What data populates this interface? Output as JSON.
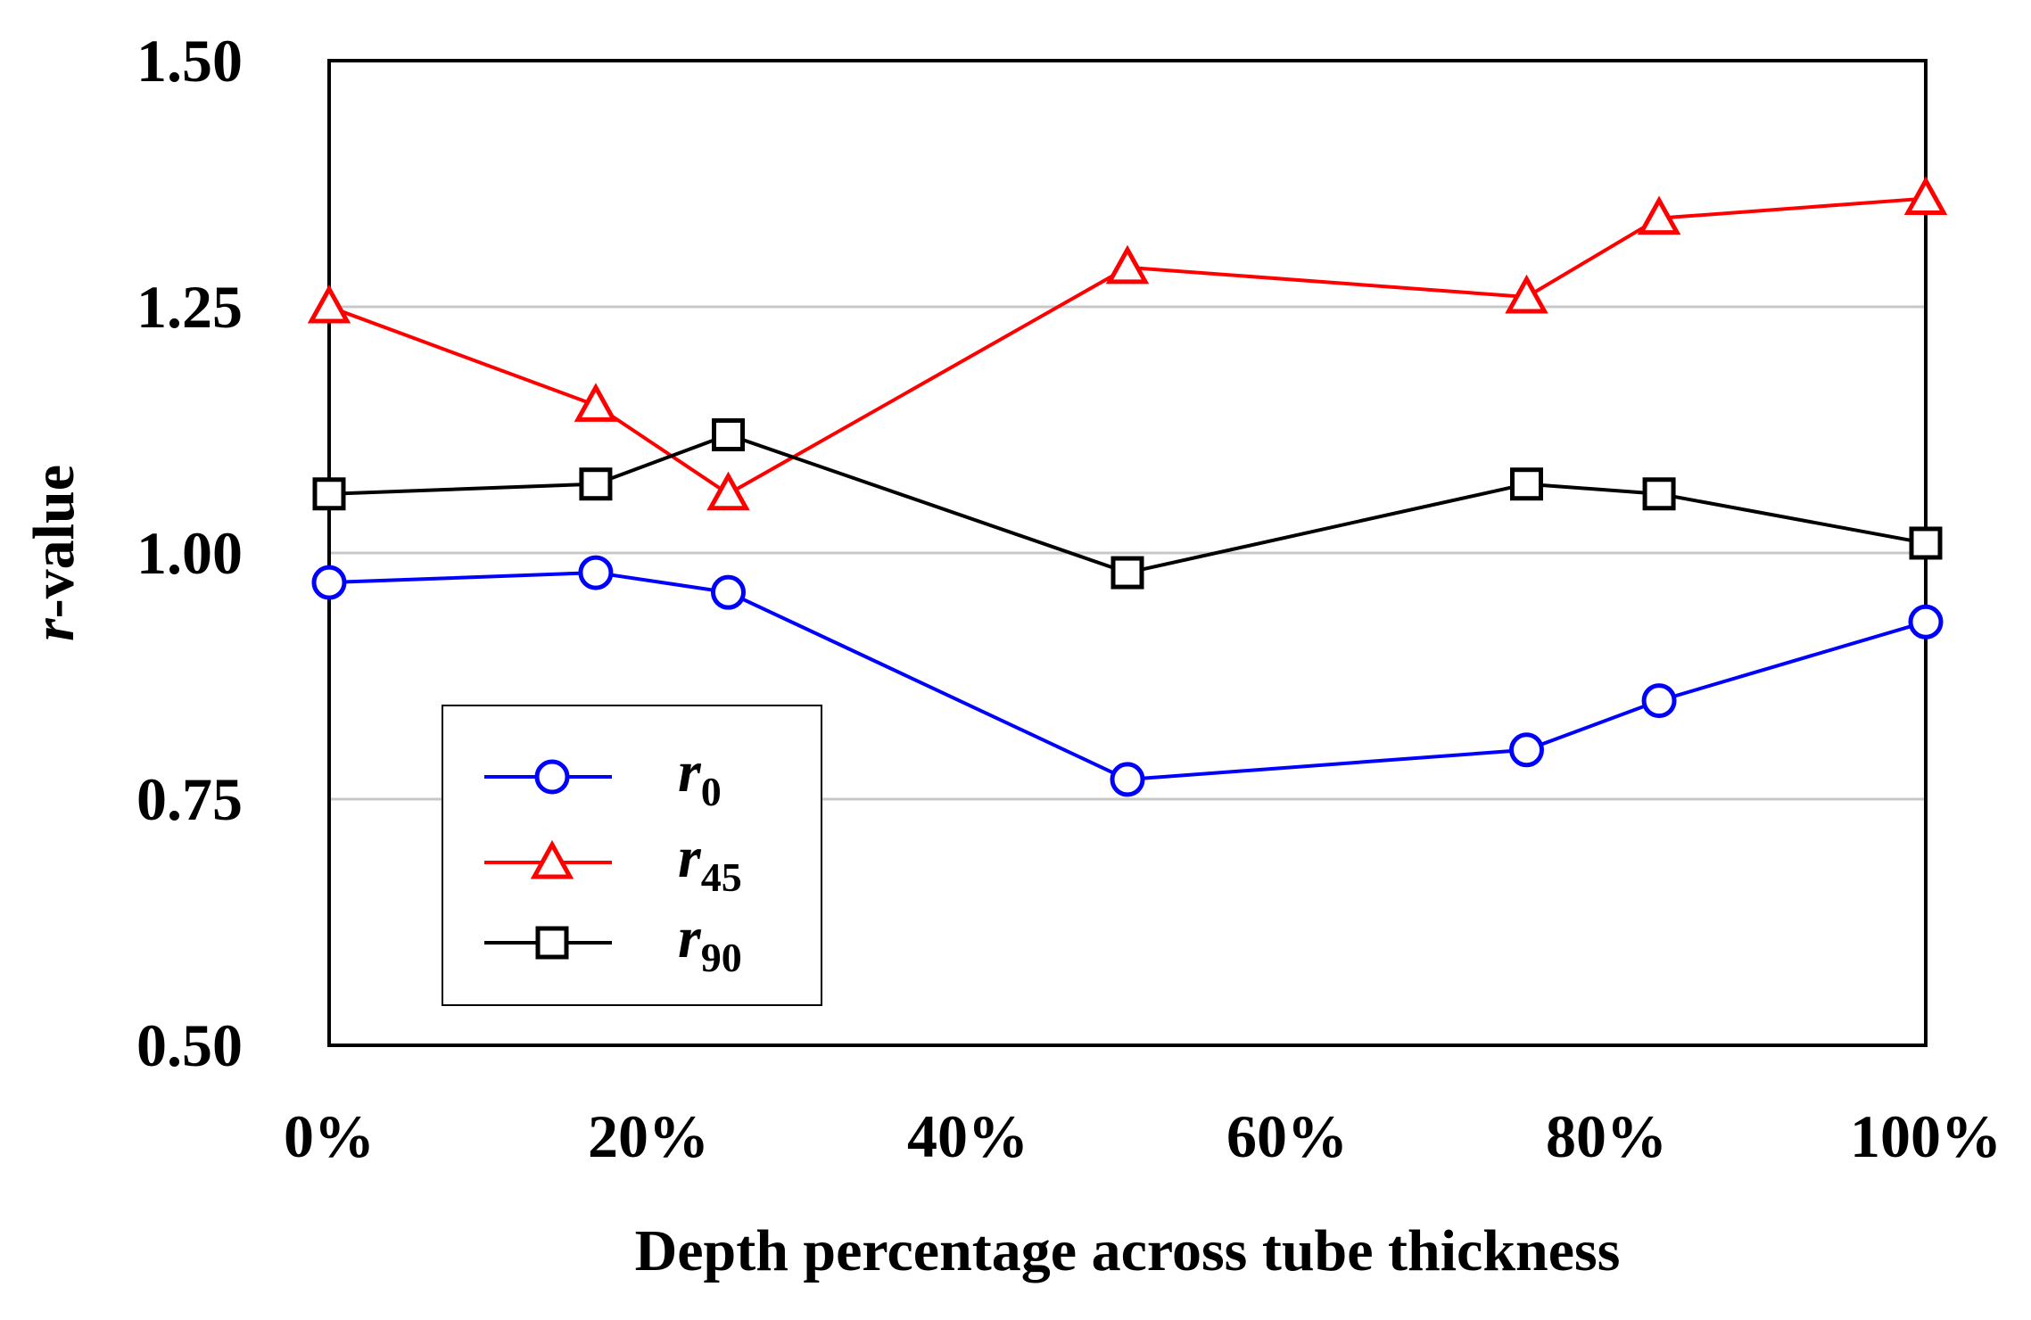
{
  "chart_data": {
    "type": "line",
    "title": "",
    "xlabel": "Depth percentage across tube thickness",
    "ylabel_italic": "r",
    "ylabel_rest": "-value",
    "xlim": [
      0,
      100
    ],
    "ylim": [
      0.5,
      1.5
    ],
    "x_ticks": [
      0,
      20,
      40,
      60,
      80,
      100
    ],
    "x_tick_labels": [
      "0%",
      "20%",
      "40%",
      "60%",
      "80%",
      "100%"
    ],
    "y_ticks": [
      0.5,
      0.75,
      1.0,
      1.25,
      1.5
    ],
    "y_tick_labels": [
      "0.50",
      "0.75",
      "1.00",
      "1.25",
      "1.50"
    ],
    "grid": "horizontal",
    "legend_position": "lower-left",
    "x": [
      0,
      16.7,
      25,
      50,
      75,
      83.3,
      100
    ],
    "series": [
      {
        "name": "r0",
        "label_main": "r",
        "label_sub": "0",
        "color": "#0000ff",
        "marker": "circle",
        "values": [
          0.97,
          0.98,
          0.96,
          0.77,
          0.8,
          0.85,
          0.93
        ]
      },
      {
        "name": "r45",
        "label_main": "r",
        "label_sub": "45",
        "color": "#ff0000",
        "marker": "triangle",
        "values": [
          1.25,
          1.15,
          1.06,
          1.29,
          1.26,
          1.34,
          1.36
        ]
      },
      {
        "name": "r90",
        "label_main": "r",
        "label_sub": "90",
        "color": "#000000",
        "marker": "square",
        "values": [
          1.06,
          1.07,
          1.12,
          0.98,
          1.07,
          1.06,
          1.01
        ]
      }
    ]
  }
}
